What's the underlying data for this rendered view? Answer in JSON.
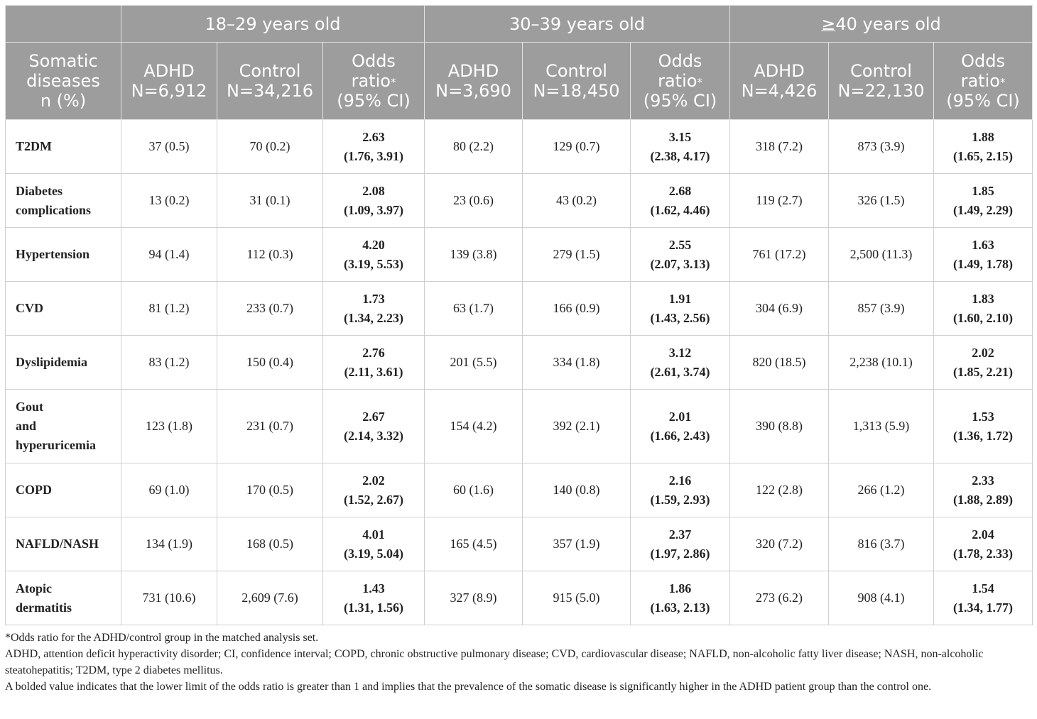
{
  "header": {
    "groups": [
      {
        "label": "18–29 years old"
      },
      {
        "label": "30–39 years old"
      },
      {
        "prefix": "≥",
        "label": "40 years old"
      }
    ],
    "first_col": [
      "Somatic",
      "diseases",
      "n (%)"
    ],
    "sub_cols": [
      {
        "lines": [
          "ADHD",
          "N=6,912"
        ]
      },
      {
        "lines": [
          "Control",
          "N=34,216"
        ]
      },
      {
        "lines": [
          "Odds",
          "ratio",
          "(95% CI)"
        ],
        "mark": "*"
      },
      {
        "lines": [
          "ADHD",
          "N=3,690"
        ]
      },
      {
        "lines": [
          "Control",
          "N=18,450"
        ]
      },
      {
        "lines": [
          "Odds",
          "ratio",
          "(95% CI)"
        ],
        "mark": "*"
      },
      {
        "lines": [
          "ADHD",
          "N=4,426"
        ]
      },
      {
        "lines": [
          "Control",
          "N=22,130"
        ]
      },
      {
        "lines": [
          "Odds",
          "ratio",
          "(95% CI)"
        ],
        "mark": "*"
      }
    ]
  },
  "rows": [
    {
      "name": [
        "T2DM"
      ],
      "h": 76,
      "cells": [
        "37 (0.5)",
        "70 (0.2)",
        [
          "2.63",
          "(1.76, 3.91)"
        ],
        "80 (2.2)",
        "129 (0.7)",
        [
          "3.15",
          "(2.38, 4.17)"
        ],
        "318 (7.2)",
        "873 (3.9)",
        [
          "1.88",
          "(1.65, 2.15)"
        ]
      ]
    },
    {
      "name": [
        "Diabetes",
        "complications"
      ],
      "h": 76,
      "cells": [
        "13 (0.2)",
        "31 (0.1)",
        [
          "2.08",
          "(1.09, 3.97)"
        ],
        "23 (0.6)",
        "43 (0.2)",
        [
          "2.68",
          "(1.62, 4.46)"
        ],
        "119 (2.7)",
        "326 (1.5)",
        [
          "1.85",
          "(1.49, 2.29)"
        ]
      ]
    },
    {
      "name": [
        "Hypertension"
      ],
      "h": 76,
      "cells": [
        "94 (1.4)",
        "112 (0.3)",
        [
          "4.20",
          "(3.19, 5.53)"
        ],
        "139 (3.8)",
        "279 (1.5)",
        [
          "2.55",
          "(2.07, 3.13)"
        ],
        "761 (17.2)",
        "2,500 (11.3)",
        [
          "1.63",
          "(1.49, 1.78)"
        ]
      ]
    },
    {
      "name": [
        "CVD"
      ],
      "h": 76,
      "cells": [
        "81 (1.2)",
        "233 (0.7)",
        [
          "1.73",
          "(1.34, 2.23)"
        ],
        "63 (1.7)",
        "166 (0.9)",
        [
          "1.91",
          "(1.43, 2.56)"
        ],
        "304 (6.9)",
        "857 (3.9)",
        [
          "1.83",
          "(1.60, 2.10)"
        ]
      ]
    },
    {
      "name": [
        "Dyslipidemia"
      ],
      "h": 76,
      "cells": [
        "83 (1.2)",
        "150 (0.4)",
        [
          "2.76",
          "(2.11, 3.61)"
        ],
        "201 (5.5)",
        "334 (1.8)",
        [
          "3.12",
          "(2.61, 3.74)"
        ],
        "820 (18.5)",
        "2,238 (10.1)",
        [
          "2.02",
          "(1.85, 2.21)"
        ]
      ]
    },
    {
      "name": [
        "Gout",
        "and",
        "hyperuricemia"
      ],
      "h": 104,
      "cells": [
        "123 (1.8)",
        "231 (0.7)",
        [
          "2.67",
          "(2.14, 3.32)"
        ],
        "154 (4.2)",
        "392 (2.1)",
        [
          "2.01",
          "(1.66, 2.43)"
        ],
        "390 (8.8)",
        "1,313 (5.9)",
        [
          "1.53",
          "(1.36, 1.72)"
        ]
      ]
    },
    {
      "name": [
        "COPD"
      ],
      "h": 76,
      "cells": [
        "69 (1.0)",
        "170 (0.5)",
        [
          "2.02",
          "(1.52, 2.67)"
        ],
        "60 (1.6)",
        "140 (0.8)",
        [
          "2.16",
          "(1.59, 2.93)"
        ],
        "122 (2.8)",
        "266 (1.2)",
        [
          "2.33",
          "(1.88, 2.89)"
        ]
      ]
    },
    {
      "name": [
        "NAFLD/NASH"
      ],
      "h": 76,
      "cells": [
        "134 (1.9)",
        "168 (0.5)",
        [
          "4.01",
          "(3.19, 5.04)"
        ],
        "165 (4.5)",
        "357 (1.9)",
        [
          "2.37",
          "(1.97, 2.86)"
        ],
        "320 (7.2)",
        "816 (3.7)",
        [
          "2.04",
          "(1.78, 2.33)"
        ]
      ]
    },
    {
      "name": [
        "Atopic",
        "dermatitis"
      ],
      "h": 76,
      "cells": [
        "731 (10.6)",
        "2,609 (7.6)",
        [
          "1.43",
          "(1.31, 1.56)"
        ],
        "327 (8.9)",
        "915 (5.0)",
        [
          "1.86",
          "(1.63, 2.13)"
        ],
        "273 (6.2)",
        "908 (4.1)",
        [
          "1.54",
          "(1.34, 1.77)"
        ]
      ]
    }
  ],
  "footnotes": [
    "*Odds ratio for the ADHD/control group in the matched analysis set.",
    "ADHD, attention deficit hyperactivity disorder; CI, confidence interval; COPD, chronic obstructive pulmonary disease; CVD, cardiovascular disease; NAFLD, non-alcoholic fatty liver disease; NASH, non-alcoholic steatohepatitis; T2DM, type 2 diabetes mellitus.",
    "A bolded value indicates that the lower limit of the odds ratio is greater than 1 and implies that the prevalence of the somatic disease is significantly higher in the ADHD patient group than the control one."
  ]
}
